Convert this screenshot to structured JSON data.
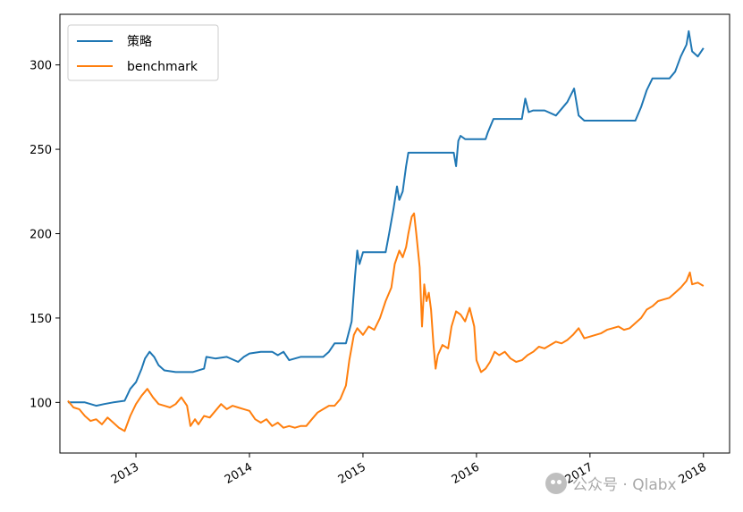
{
  "chart_data": {
    "type": "line",
    "title": "",
    "xlabel": "",
    "ylabel": "",
    "xlim": [
      2012.33,
      2018.23
    ],
    "ylim": [
      70,
      330
    ],
    "x_ticks": [
      2013,
      2014,
      2015,
      2016,
      2017,
      2018
    ],
    "x_tick_labels": [
      "2013",
      "2014",
      "2015",
      "2016",
      "2017",
      "2018"
    ],
    "y_ticks": [
      100,
      150,
      200,
      250,
      300
    ],
    "y_tick_labels": [
      "100",
      "150",
      "200",
      "250",
      "300"
    ],
    "grid": false,
    "legend_position": "top-left",
    "series": [
      {
        "name": "策略",
        "color": "#1f77b4",
        "points": [
          [
            2012.4,
            100
          ],
          [
            2012.55,
            100
          ],
          [
            2012.6,
            99
          ],
          [
            2012.65,
            98
          ],
          [
            2012.72,
            99
          ],
          [
            2012.8,
            100
          ],
          [
            2012.9,
            101
          ],
          [
            2012.95,
            108
          ],
          [
            2013.0,
            112
          ],
          [
            2013.05,
            120
          ],
          [
            2013.08,
            126
          ],
          [
            2013.12,
            130
          ],
          [
            2013.16,
            127
          ],
          [
            2013.2,
            122
          ],
          [
            2013.25,
            119
          ],
          [
            2013.35,
            118
          ],
          [
            2013.5,
            118
          ],
          [
            2013.6,
            120
          ],
          [
            2013.62,
            127
          ],
          [
            2013.7,
            126
          ],
          [
            2013.8,
            127
          ],
          [
            2013.9,
            124
          ],
          [
            2013.95,
            127
          ],
          [
            2014.0,
            129
          ],
          [
            2014.1,
            130
          ],
          [
            2014.2,
            130
          ],
          [
            2014.25,
            128
          ],
          [
            2014.3,
            130
          ],
          [
            2014.35,
            125
          ],
          [
            2014.45,
            127
          ],
          [
            2014.55,
            127
          ],
          [
            2014.65,
            127
          ],
          [
            2014.7,
            130
          ],
          [
            2014.75,
            135
          ],
          [
            2014.85,
            135
          ],
          [
            2014.9,
            148
          ],
          [
            2014.93,
            175
          ],
          [
            2014.95,
            190
          ],
          [
            2014.97,
            182
          ],
          [
            2015.0,
            189
          ],
          [
            2015.1,
            189
          ],
          [
            2015.2,
            189
          ],
          [
            2015.23,
            200
          ],
          [
            2015.27,
            215
          ],
          [
            2015.3,
            228
          ],
          [
            2015.32,
            220
          ],
          [
            2015.35,
            225
          ],
          [
            2015.38,
            240
          ],
          [
            2015.4,
            248
          ],
          [
            2015.5,
            248
          ],
          [
            2015.6,
            248
          ],
          [
            2015.7,
            248
          ],
          [
            2015.8,
            248
          ],
          [
            2015.82,
            240
          ],
          [
            2015.84,
            255
          ],
          [
            2015.86,
            258
          ],
          [
            2015.9,
            256
          ],
          [
            2016.0,
            256
          ],
          [
            2016.08,
            256
          ],
          [
            2016.1,
            260
          ],
          [
            2016.15,
            268
          ],
          [
            2016.2,
            268
          ],
          [
            2016.3,
            268
          ],
          [
            2016.4,
            268
          ],
          [
            2016.43,
            280
          ],
          [
            2016.46,
            272
          ],
          [
            2016.5,
            273
          ],
          [
            2016.6,
            273
          ],
          [
            2016.7,
            270
          ],
          [
            2016.75,
            274
          ],
          [
            2016.8,
            278
          ],
          [
            2016.86,
            286
          ],
          [
            2016.9,
            270
          ],
          [
            2016.95,
            267
          ],
          [
            2017.05,
            267
          ],
          [
            2017.15,
            267
          ],
          [
            2017.3,
            267
          ],
          [
            2017.4,
            267
          ],
          [
            2017.45,
            275
          ],
          [
            2017.5,
            285
          ],
          [
            2017.55,
            292
          ],
          [
            2017.6,
            292
          ],
          [
            2017.7,
            292
          ],
          [
            2017.75,
            296
          ],
          [
            2017.8,
            305
          ],
          [
            2017.85,
            312
          ],
          [
            2017.87,
            320
          ],
          [
            2017.9,
            308
          ],
          [
            2017.95,
            305
          ],
          [
            2018.0,
            310
          ]
        ]
      },
      {
        "name": "benchmark",
        "color": "#ff7f0e",
        "points": [
          [
            2012.4,
            101
          ],
          [
            2012.45,
            97
          ],
          [
            2012.5,
            96
          ],
          [
            2012.55,
            92
          ],
          [
            2012.6,
            89
          ],
          [
            2012.65,
            90
          ],
          [
            2012.7,
            87
          ],
          [
            2012.75,
            91
          ],
          [
            2012.8,
            88
          ],
          [
            2012.85,
            85
          ],
          [
            2012.9,
            83
          ],
          [
            2012.95,
            92
          ],
          [
            2013.0,
            99
          ],
          [
            2013.05,
            104
          ],
          [
            2013.1,
            108
          ],
          [
            2013.15,
            103
          ],
          [
            2013.2,
            99
          ],
          [
            2013.25,
            98
          ],
          [
            2013.3,
            97
          ],
          [
            2013.35,
            99
          ],
          [
            2013.4,
            103
          ],
          [
            2013.45,
            98
          ],
          [
            2013.48,
            86
          ],
          [
            2013.52,
            90
          ],
          [
            2013.55,
            87
          ],
          [
            2013.6,
            92
          ],
          [
            2013.65,
            91
          ],
          [
            2013.7,
            95
          ],
          [
            2013.75,
            99
          ],
          [
            2013.8,
            96
          ],
          [
            2013.85,
            98
          ],
          [
            2013.9,
            97
          ],
          [
            2013.95,
            96
          ],
          [
            2014.0,
            95
          ],
          [
            2014.05,
            90
          ],
          [
            2014.1,
            88
          ],
          [
            2014.15,
            90
          ],
          [
            2014.2,
            86
          ],
          [
            2014.25,
            88
          ],
          [
            2014.3,
            85
          ],
          [
            2014.35,
            86
          ],
          [
            2014.4,
            85
          ],
          [
            2014.45,
            86
          ],
          [
            2014.5,
            86
          ],
          [
            2014.55,
            90
          ],
          [
            2014.6,
            94
          ],
          [
            2014.65,
            96
          ],
          [
            2014.7,
            98
          ],
          [
            2014.75,
            98
          ],
          [
            2014.8,
            102
          ],
          [
            2014.85,
            110
          ],
          [
            2014.88,
            125
          ],
          [
            2014.92,
            140
          ],
          [
            2014.95,
            144
          ],
          [
            2015.0,
            140
          ],
          [
            2015.05,
            145
          ],
          [
            2015.1,
            143
          ],
          [
            2015.15,
            150
          ],
          [
            2015.2,
            160
          ],
          [
            2015.25,
            168
          ],
          [
            2015.28,
            182
          ],
          [
            2015.32,
            190
          ],
          [
            2015.35,
            186
          ],
          [
            2015.38,
            192
          ],
          [
            2015.4,
            200
          ],
          [
            2015.43,
            210
          ],
          [
            2015.45,
            212
          ],
          [
            2015.47,
            200
          ],
          [
            2015.5,
            180
          ],
          [
            2015.52,
            145
          ],
          [
            2015.54,
            170
          ],
          [
            2015.56,
            160
          ],
          [
            2015.58,
            165
          ],
          [
            2015.6,
            155
          ],
          [
            2015.62,
            135
          ],
          [
            2015.64,
            120
          ],
          [
            2015.66,
            128
          ],
          [
            2015.7,
            134
          ],
          [
            2015.75,
            132
          ],
          [
            2015.78,
            145
          ],
          [
            2015.82,
            154
          ],
          [
            2015.86,
            152
          ],
          [
            2015.9,
            148
          ],
          [
            2015.94,
            156
          ],
          [
            2015.98,
            145
          ],
          [
            2016.0,
            125
          ],
          [
            2016.04,
            118
          ],
          [
            2016.08,
            120
          ],
          [
            2016.12,
            124
          ],
          [
            2016.16,
            130
          ],
          [
            2016.2,
            128
          ],
          [
            2016.25,
            130
          ],
          [
            2016.3,
            126
          ],
          [
            2016.35,
            124
          ],
          [
            2016.4,
            125
          ],
          [
            2016.45,
            128
          ],
          [
            2016.5,
            130
          ],
          [
            2016.55,
            133
          ],
          [
            2016.6,
            132
          ],
          [
            2016.65,
            134
          ],
          [
            2016.7,
            136
          ],
          [
            2016.75,
            135
          ],
          [
            2016.8,
            137
          ],
          [
            2016.85,
            140
          ],
          [
            2016.9,
            144
          ],
          [
            2016.95,
            138
          ],
          [
            2017.0,
            139
          ],
          [
            2017.05,
            140
          ],
          [
            2017.1,
            141
          ],
          [
            2017.15,
            143
          ],
          [
            2017.2,
            144
          ],
          [
            2017.25,
            145
          ],
          [
            2017.3,
            143
          ],
          [
            2017.35,
            144
          ],
          [
            2017.4,
            147
          ],
          [
            2017.45,
            150
          ],
          [
            2017.5,
            155
          ],
          [
            2017.55,
            157
          ],
          [
            2017.6,
            160
          ],
          [
            2017.65,
            161
          ],
          [
            2017.7,
            162
          ],
          [
            2017.75,
            165
          ],
          [
            2017.8,
            168
          ],
          [
            2017.85,
            172
          ],
          [
            2017.88,
            177
          ],
          [
            2017.9,
            170
          ],
          [
            2017.95,
            171
          ],
          [
            2018.0,
            169
          ]
        ]
      }
    ]
  },
  "watermark": {
    "icon": "wechat-icon",
    "text": "公众号 · Qlabx"
  }
}
